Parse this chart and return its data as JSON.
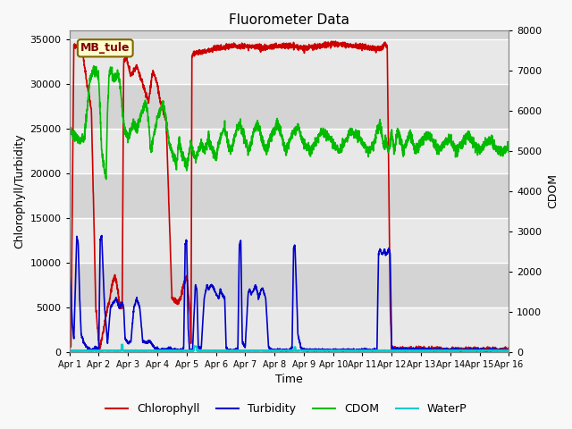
{
  "title": "Fluorometer Data",
  "xlabel": "Time",
  "ylabel_left": "Chlorophyll/Turbidity",
  "ylabel_right": "CDOM",
  "annotation": "MB_tule",
  "ylim_left": [
    0,
    36000
  ],
  "ylim_right": [
    0,
    8000
  ],
  "x_tick_labels": [
    "Apr 1",
    "Apr 2",
    "Apr 3",
    "Apr 4",
    "Apr 5",
    "Apr 6",
    "Apr 7",
    "Apr 8",
    "Apr 9",
    "Apr 10",
    "Apr 11",
    "Apr 12",
    "Apr 13",
    "Apr 14",
    "Apr 15",
    "Apr 16"
  ],
  "legend_labels": [
    "Chlorophyll",
    "Turbidity",
    "CDOM",
    "WaterP"
  ],
  "chl_color": "#cc0000",
  "turb_color": "#0000cc",
  "cdom_color": "#00bb00",
  "waterp_color": "#00cccc",
  "fig_bg": "#f8f8f8",
  "band_colors": [
    "#e8e8e8",
    "#d8d8d8"
  ],
  "grid_color": "#ffffff",
  "yticks_left": [
    0,
    5000,
    10000,
    15000,
    20000,
    25000,
    30000,
    35000
  ],
  "yticks_right": [
    0,
    1000,
    2000,
    3000,
    4000,
    5000,
    6000,
    7000,
    8000
  ]
}
